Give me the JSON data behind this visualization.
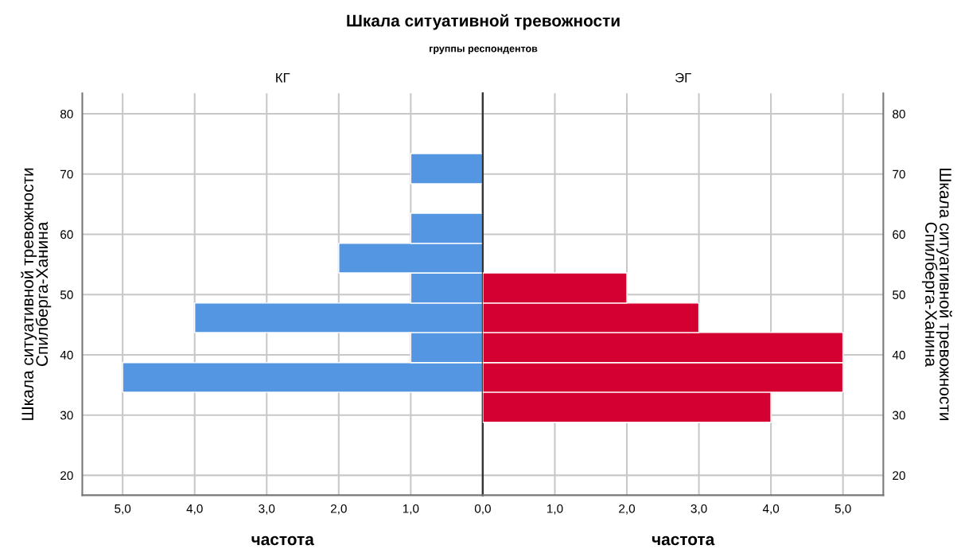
{
  "chart_data": [
    {
      "type": "histogram",
      "orientation": "horizontal",
      "title": "КГ",
      "annotations": [
        "Шкала ситуативной тревожности",
        "группы респондентов"
      ],
      "xlabel": "частота",
      "ylabel": "Шкала ситуативной тревожности\nСпилберга-Ханина",
      "bins": [
        33.8,
        38.7,
        43.7,
        48.6,
        53.6,
        58.5,
        63.5,
        68.4,
        73.4
      ],
      "values": [
        5,
        1,
        4,
        1,
        2,
        1,
        0,
        1
      ],
      "color": "#5596e3",
      "xlim": [
        5.56,
        0
      ],
      "xticks": [
        {
          "value": 5,
          "label": "5,0"
        },
        {
          "value": 4,
          "label": "4,0"
        },
        {
          "value": 3,
          "label": "3,0"
        },
        {
          "value": 2,
          "label": "2,0"
        },
        {
          "value": 1,
          "label": "1,0"
        },
        {
          "value": 0,
          "label": "0,0"
        }
      ],
      "ylim": [
        16.7,
        83.4
      ],
      "yticks": [
        20,
        30,
        40,
        50,
        60,
        70,
        80
      ],
      "grid": true
    },
    {
      "type": "histogram",
      "orientation": "horizontal",
      "title": "ЭГ",
      "xlabel": "частота",
      "ylabel": "Шкала ситуативной тревожности\nСпилберга-Ханина",
      "bins": [
        28.8,
        33.8,
        38.7,
        43.7,
        48.6,
        53.6
      ],
      "values": [
        4,
        5,
        5,
        3,
        2
      ],
      "color": "#d50032",
      "xlim": [
        0,
        5.56
      ],
      "xticks": [
        {
          "value": 1,
          "label": "1,0"
        },
        {
          "value": 2,
          "label": "2,0"
        },
        {
          "value": 3,
          "label": "3,0"
        },
        {
          "value": 4,
          "label": "4,0"
        },
        {
          "value": 5,
          "label": "5,0"
        }
      ],
      "ylim": [
        16.7,
        83.4
      ],
      "yticks": [
        20,
        30,
        40,
        50,
        60,
        70,
        80
      ],
      "grid": true
    }
  ]
}
